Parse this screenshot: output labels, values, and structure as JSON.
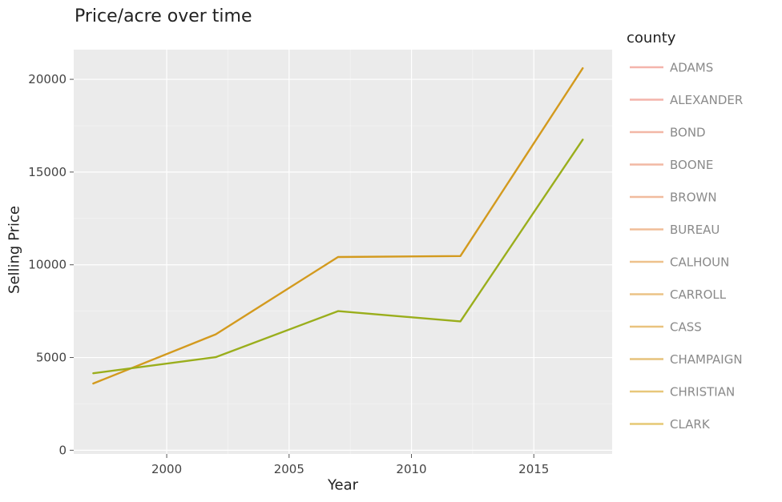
{
  "chart_data": {
    "type": "line",
    "title": "Price/acre over time",
    "xlabel": "Year",
    "ylabel": "Selling Price",
    "xlim": [
      1996.2,
      2018.2
    ],
    "ylim": [
      -200,
      21600
    ],
    "xticks": [
      2000,
      2005,
      2010,
      2015
    ],
    "yticks": [
      0,
      5000,
      10000,
      15000,
      20000
    ],
    "grid": true,
    "legend_title": "county",
    "legend_position": "right",
    "series": [
      {
        "name": "CHAMPAIGN",
        "color": "#d39a1e",
        "x": [
          1997,
          2002,
          2007,
          2012,
          2017
        ],
        "y": [
          3600,
          6250,
          10420,
          10470,
          20600
        ]
      },
      {
        "name": "",
        "color": "#9aae1c",
        "x": [
          1997,
          2002,
          2007,
          2012,
          2017
        ],
        "y": [
          4150,
          5020,
          7500,
          6950,
          16750
        ]
      }
    ],
    "legend": [
      {
        "name": "ADAMS",
        "color": "#f4b4ac"
      },
      {
        "name": "ALEXANDER",
        "color": "#f4b4aa"
      },
      {
        "name": "BOND",
        "color": "#f3b7a6"
      },
      {
        "name": "BOONE",
        "color": "#f2b9a4"
      },
      {
        "name": "BROWN",
        "color": "#f1bb9e"
      },
      {
        "name": "BUREAU",
        "color": "#f0bd98"
      },
      {
        "name": "CALHOUN",
        "color": "#eec18c"
      },
      {
        "name": "CARROLL",
        "color": "#ecc386"
      },
      {
        "name": "CASS",
        "color": "#e9c37e"
      },
      {
        "name": "CHAMPAIGN",
        "color": "#e6c27c"
      },
      {
        "name": "CHRISTIAN",
        "color": "#e8c77a"
      },
      {
        "name": "CLARK",
        "color": "#e6c874"
      }
    ]
  }
}
